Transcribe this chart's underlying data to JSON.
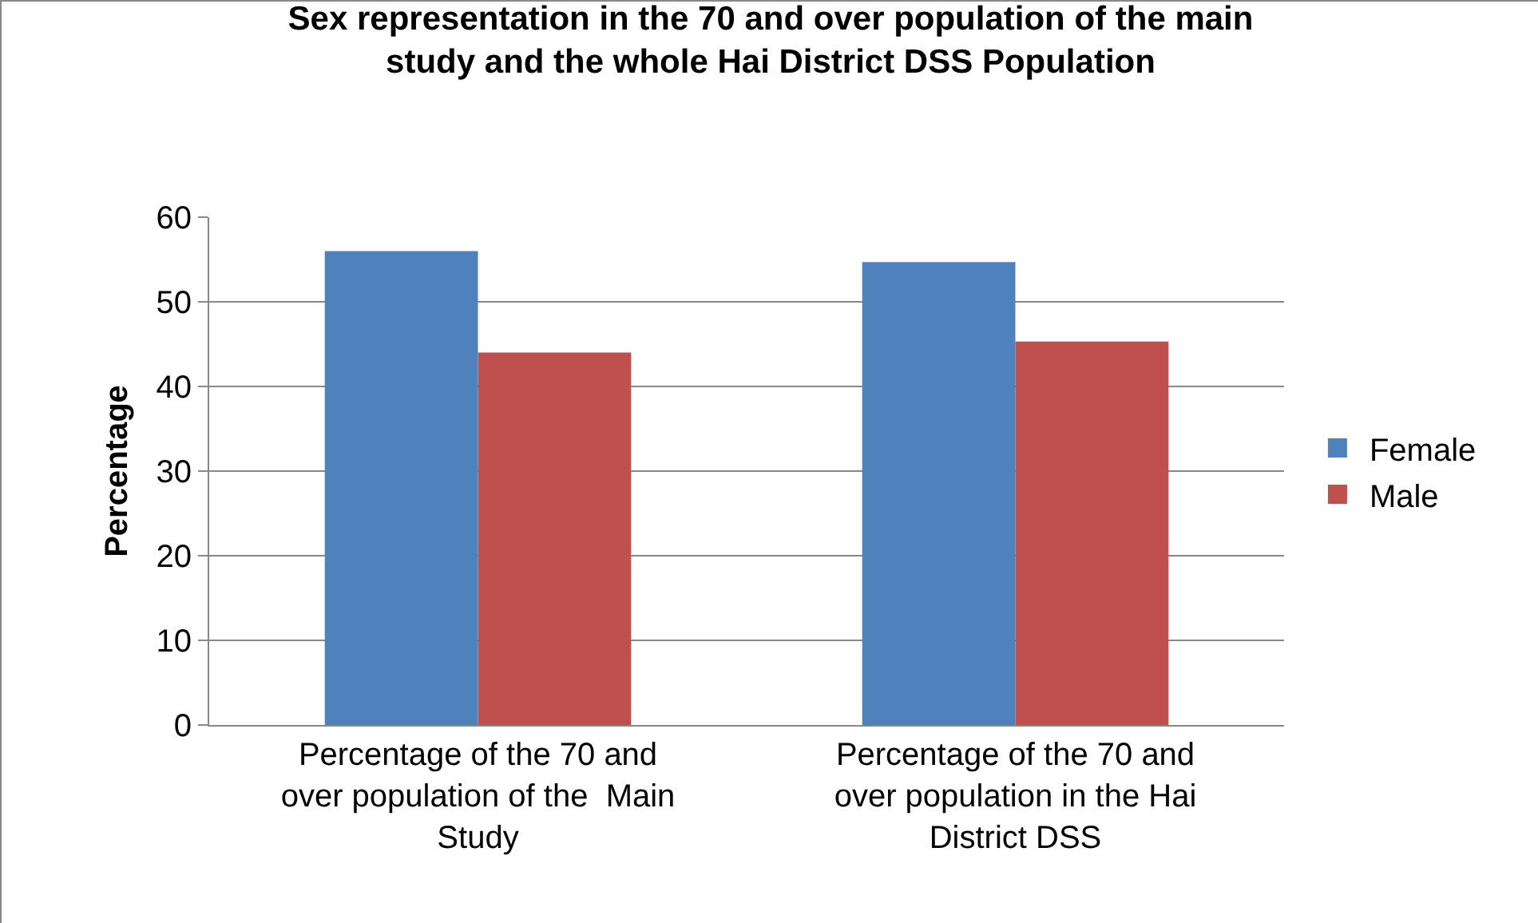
{
  "chart_data": {
    "type": "bar",
    "title": "Sex representation in the 70 and over population of the main study and the whole Hai District DSS Population",
    "ylabel": "Percentage",
    "categories": [
      "Percentage of the 70 and over population of the  Main Study",
      "Percentage of the 70 and over population in the Hai District DSS"
    ],
    "series": [
      {
        "name": "Female",
        "color": "#4f81bd",
        "values": [
          56.0,
          54.7
        ]
      },
      {
        "name": "Male",
        "color": "#c0504d",
        "values": [
          44.0,
          45.3
        ]
      }
    ],
    "ylim": [
      0,
      60
    ],
    "yticks": [
      0,
      10,
      20,
      30,
      40,
      50,
      60
    ],
    "grid": "y",
    "legend": "right"
  }
}
